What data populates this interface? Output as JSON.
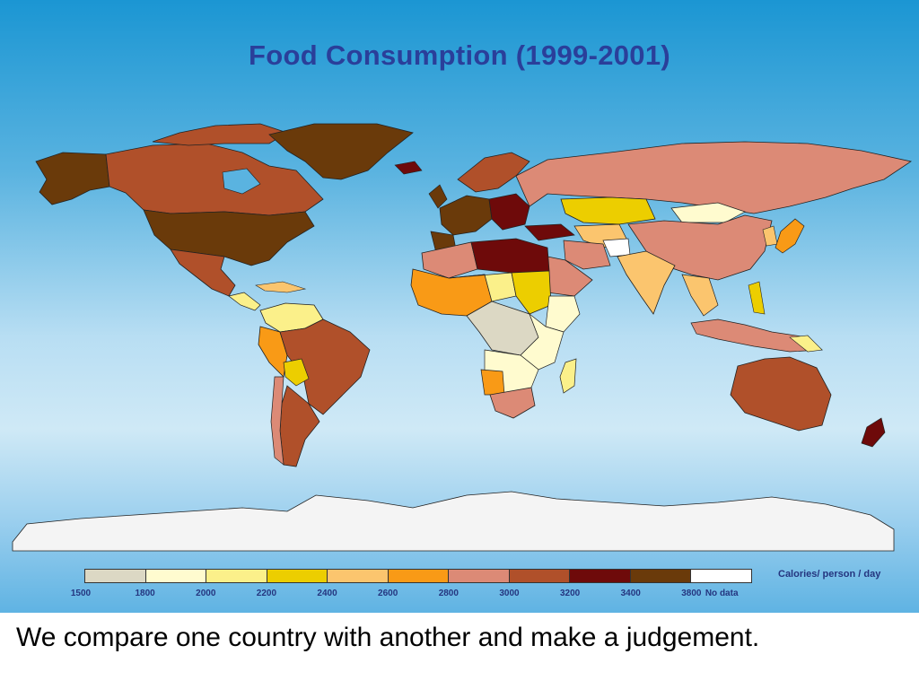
{
  "title": "Food Consumption (1999-2001)",
  "caption": "We compare one country with another and make a judgement.",
  "legend": {
    "unit_label": "Calories/ person / day",
    "swatch_colors": [
      "#dcd8c4",
      "#fffbcf",
      "#fbf08a",
      "#ecce00",
      "#fbc56e",
      "#f99a16",
      "#dc8a76",
      "#b0502a",
      "#6e0a0a",
      "#6a3a0a",
      "#ffffff"
    ],
    "tick_labels": [
      "1500",
      "1800",
      "2000",
      "2200",
      "2400",
      "2600",
      "2800",
      "3000",
      "3200",
      "3400",
      "3800",
      "No data"
    ]
  },
  "colors": {
    "ocean_top": "#1b96d3",
    "ocean_mid": "#cfe9f6",
    "title_text": "#2a3f9a",
    "antarctica": "#f4f4f4"
  }
}
